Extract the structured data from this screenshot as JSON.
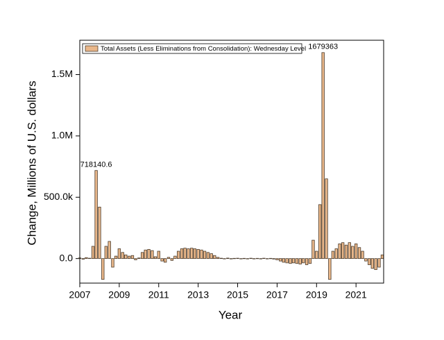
{
  "chart_data": {
    "type": "bar",
    "legend_title": null,
    "xlabel": "Year",
    "ylabel": "Change, Millions of U.S. dollars",
    "xlim": [
      2007,
      2022.4
    ],
    "xticks": [
      2007,
      2009,
      2011,
      2013,
      2015,
      2017,
      2019,
      2021
    ],
    "ylim": [
      -200000,
      1780000
    ],
    "yticks": [
      {
        "value": 0,
        "label": "0.0"
      },
      {
        "value": 500000,
        "label": "500.0k"
      },
      {
        "value": 1000000,
        "label": "1.0M"
      },
      {
        "value": 1500000,
        "label": "1.5M"
      }
    ],
    "legend": "upper left",
    "x": [
      2007,
      2007.17,
      2007.33,
      2007.5,
      2007.67,
      2007.83,
      2008,
      2008.17,
      2008.33,
      2008.5,
      2008.67,
      2008.83,
      2009,
      2009.17,
      2009.33,
      2009.5,
      2009.67,
      2009.83,
      2010,
      2010.17,
      2010.33,
      2010.5,
      2010.67,
      2010.83,
      2011,
      2011.17,
      2011.33,
      2011.5,
      2011.67,
      2011.83,
      2012,
      2012.17,
      2012.33,
      2012.5,
      2012.67,
      2012.83,
      2013,
      2013.17,
      2013.33,
      2013.5,
      2013.67,
      2013.83,
      2014,
      2014.17,
      2014.33,
      2014.5,
      2014.67,
      2014.83,
      2015,
      2015.17,
      2015.33,
      2015.5,
      2015.67,
      2015.83,
      2016,
      2016.17,
      2016.33,
      2016.5,
      2016.67,
      2016.83,
      2017,
      2017.17,
      2017.33,
      2017.5,
      2017.67,
      2017.83,
      2018,
      2018.17,
      2018.33,
      2018.5,
      2018.67,
      2018.83,
      2019,
      2019.17,
      2019.33,
      2019.5,
      2019.67,
      2019.83,
      2020,
      2020.17,
      2020.33,
      2020.5,
      2020.67,
      2020.83,
      2021,
      2021.17,
      2021.33,
      2021.5,
      2021.67,
      2021.83,
      2022,
      2022.17,
      2022.33
    ],
    "series": [
      {
        "name": "Total Assets (Less Eliminations from Consolidation): Wednesday Level",
        "color": "#e9b78a",
        "values": [
          5000,
          -5000,
          8000,
          3000,
          100000,
          718140.6,
          420000,
          -170000,
          100000,
          140000,
          -70000,
          20000,
          80000,
          50000,
          30000,
          20000,
          25000,
          -10000,
          5000,
          50000,
          70000,
          75000,
          65000,
          15000,
          60000,
          -20000,
          -30000,
          10000,
          -15000,
          20000,
          60000,
          80000,
          85000,
          80000,
          85000,
          80000,
          75000,
          70000,
          60000,
          50000,
          40000,
          25000,
          10000,
          3000,
          -2000,
          4000,
          -3000,
          2000,
          3000,
          -2000,
          2000,
          -3000,
          3000,
          -2000,
          2000,
          -3000,
          3000,
          -2000,
          2000,
          -4000,
          -10000,
          -20000,
          -30000,
          -35000,
          -40000,
          -35000,
          -40000,
          -45000,
          -35000,
          -50000,
          -40000,
          150000,
          60000,
          440000,
          1679363,
          650000,
          -170000,
          60000,
          80000,
          120000,
          130000,
          110000,
          130000,
          100000,
          120000,
          90000,
          60000,
          -20000,
          -50000,
          -80000,
          -90000,
          -70000,
          30000
        ]
      }
    ]
  }
}
